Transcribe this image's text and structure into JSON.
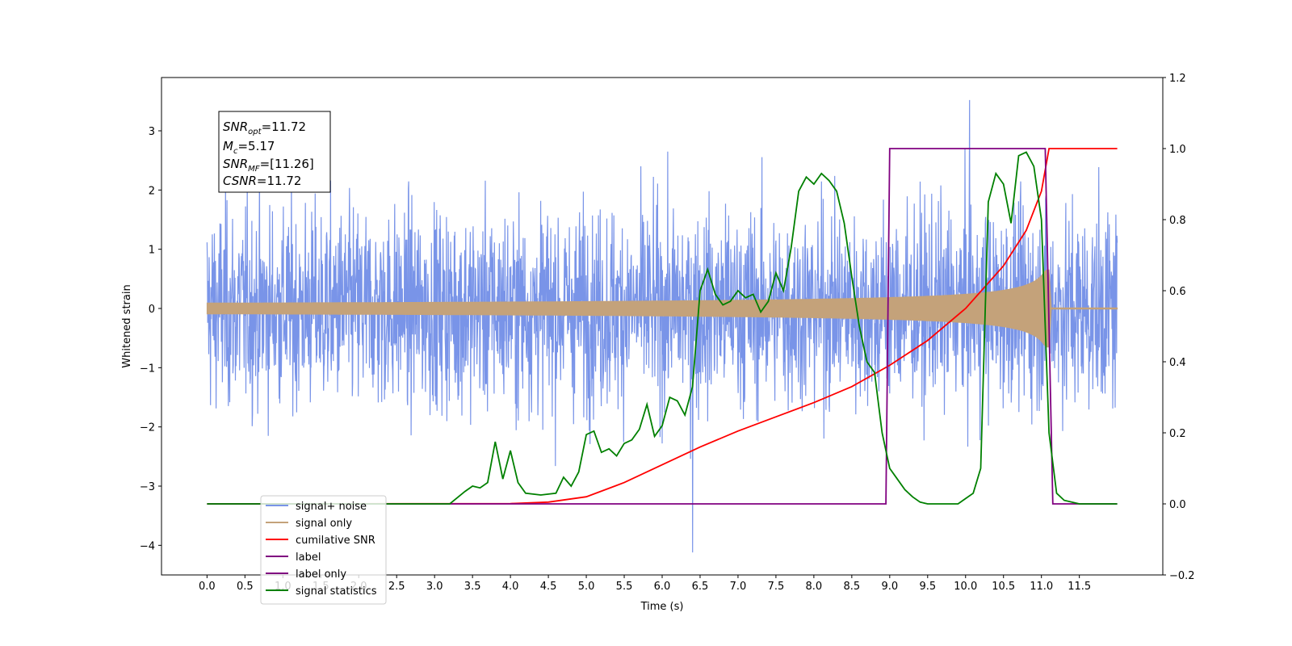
{
  "chart_data": {
    "type": "line",
    "xlabel": "Time (s)",
    "ylabel": "Whitened strain",
    "xlim": [
      -0.6,
      12.6
    ],
    "ylim": [
      -4.5,
      3.9
    ],
    "y2lim": [
      -0.2,
      1.2
    ],
    "x_ticks": [
      "0.0",
      "0.5",
      "1.0",
      "1.5",
      "2.0",
      "2.5",
      "3.0",
      "3.5",
      "4.0",
      "4.5",
      "5.0",
      "5.5",
      "6.0",
      "6.5",
      "7.0",
      "7.5",
      "8.0",
      "8.5",
      "9.0",
      "9.5",
      "10.0",
      "10.5",
      "11.0",
      "11.5"
    ],
    "y_ticks": [
      "3",
      "2",
      "1",
      "0",
      "−1",
      "−2",
      "−3",
      "−4"
    ],
    "y2_ticks": [
      "1.2",
      "1.0",
      "0.8",
      "0.6",
      "0.4",
      "0.2",
      "0.0",
      "−0.2"
    ],
    "grid": false,
    "legend_position": "lower-left",
    "annotation": {
      "snr_opt": {
        "symbol": "SNR",
        "sub": "opt",
        "value": "=11.72"
      },
      "mc": {
        "symbol": "M",
        "sub": "c",
        "value": "=5.17"
      },
      "snr_mf": {
        "symbol": "SNR",
        "sub": "MF",
        "value": "=[11.26]"
      },
      "csnr": {
        "symbol": "CSNR",
        "sub": "",
        "value": "=11.72"
      }
    },
    "series": [
      {
        "name": "signal+ noise",
        "axis": "left",
        "color": "#7994e8",
        "description_values": {
          "x_range": [
            0.0,
            12.0
          ],
          "noise_level": 1.0,
          "peak_max": 3.52,
          "peak_min": -4.12
        }
      },
      {
        "name": "signal only",
        "axis": "left",
        "color": "#c4a27a",
        "chirp": {
          "t_start": 0.0,
          "t_merger": 11.1,
          "amp_start": 0.005,
          "amp_at_11": 0.55,
          "amp_max": 0.65
        }
      },
      {
        "name": "cumilative SNR",
        "axis": "right",
        "color": "#ff0000",
        "x": [
          0.0,
          4.0,
          4.5,
          5.0,
          5.5,
          6.0,
          6.5,
          7.0,
          7.5,
          8.0,
          8.5,
          9.0,
          9.5,
          10.0,
          10.5,
          10.8,
          11.0,
          11.1,
          12.0
        ],
        "y": [
          0.0,
          0.001,
          0.005,
          0.02,
          0.06,
          0.11,
          0.16,
          0.205,
          0.245,
          0.285,
          0.33,
          0.39,
          0.46,
          0.55,
          0.67,
          0.77,
          0.88,
          1.0,
          1.0
        ]
      },
      {
        "name": "label",
        "axis": "right",
        "color": "#800080",
        "x": [
          0.0,
          8.95,
          9.0,
          11.05,
          11.15,
          12.0
        ],
        "y": [
          0.0,
          0.0,
          1.0,
          1.0,
          0.0,
          0.0
        ]
      },
      {
        "name": "label only",
        "axis": "right",
        "color": "#800080",
        "x": [],
        "y": []
      },
      {
        "name": "signal statistics",
        "axis": "right",
        "color": "#008000",
        "x": [
          0.0,
          3.0,
          3.2,
          3.4,
          3.5,
          3.6,
          3.7,
          3.8,
          3.9,
          4.0,
          4.1,
          4.2,
          4.4,
          4.6,
          4.7,
          4.8,
          4.9,
          5.0,
          5.1,
          5.2,
          5.3,
          5.4,
          5.5,
          5.6,
          5.7,
          5.8,
          5.9,
          6.0,
          6.1,
          6.2,
          6.3,
          6.4,
          6.5,
          6.6,
          6.7,
          6.8,
          6.9,
          7.0,
          7.1,
          7.2,
          7.3,
          7.4,
          7.5,
          7.6,
          7.7,
          7.8,
          7.9,
          8.0,
          8.1,
          8.2,
          8.3,
          8.4,
          8.5,
          8.6,
          8.7,
          8.8,
          8.9,
          9.0,
          9.1,
          9.2,
          9.3,
          9.4,
          9.5,
          9.7,
          9.9,
          10.0,
          10.1,
          10.2,
          10.3,
          10.4,
          10.5,
          10.6,
          10.7,
          10.8,
          10.9,
          11.0,
          11.1,
          11.2,
          11.3,
          11.5,
          12.0
        ],
        "y": [
          0.0,
          0.0,
          0.0,
          0.035,
          0.05,
          0.045,
          0.06,
          0.175,
          0.07,
          0.15,
          0.06,
          0.03,
          0.025,
          0.03,
          0.075,
          0.05,
          0.09,
          0.195,
          0.205,
          0.145,
          0.155,
          0.135,
          0.17,
          0.18,
          0.21,
          0.28,
          0.19,
          0.22,
          0.3,
          0.29,
          0.25,
          0.33,
          0.6,
          0.66,
          0.59,
          0.56,
          0.57,
          0.6,
          0.58,
          0.59,
          0.54,
          0.57,
          0.65,
          0.6,
          0.72,
          0.88,
          0.92,
          0.9,
          0.93,
          0.91,
          0.88,
          0.79,
          0.64,
          0.5,
          0.4,
          0.37,
          0.2,
          0.1,
          0.07,
          0.04,
          0.02,
          0.005,
          0.0,
          0.0,
          0.0,
          0.015,
          0.03,
          0.1,
          0.85,
          0.93,
          0.9,
          0.79,
          0.98,
          0.99,
          0.95,
          0.8,
          0.2,
          0.03,
          0.01,
          0.0,
          0.0
        ]
      }
    ]
  }
}
